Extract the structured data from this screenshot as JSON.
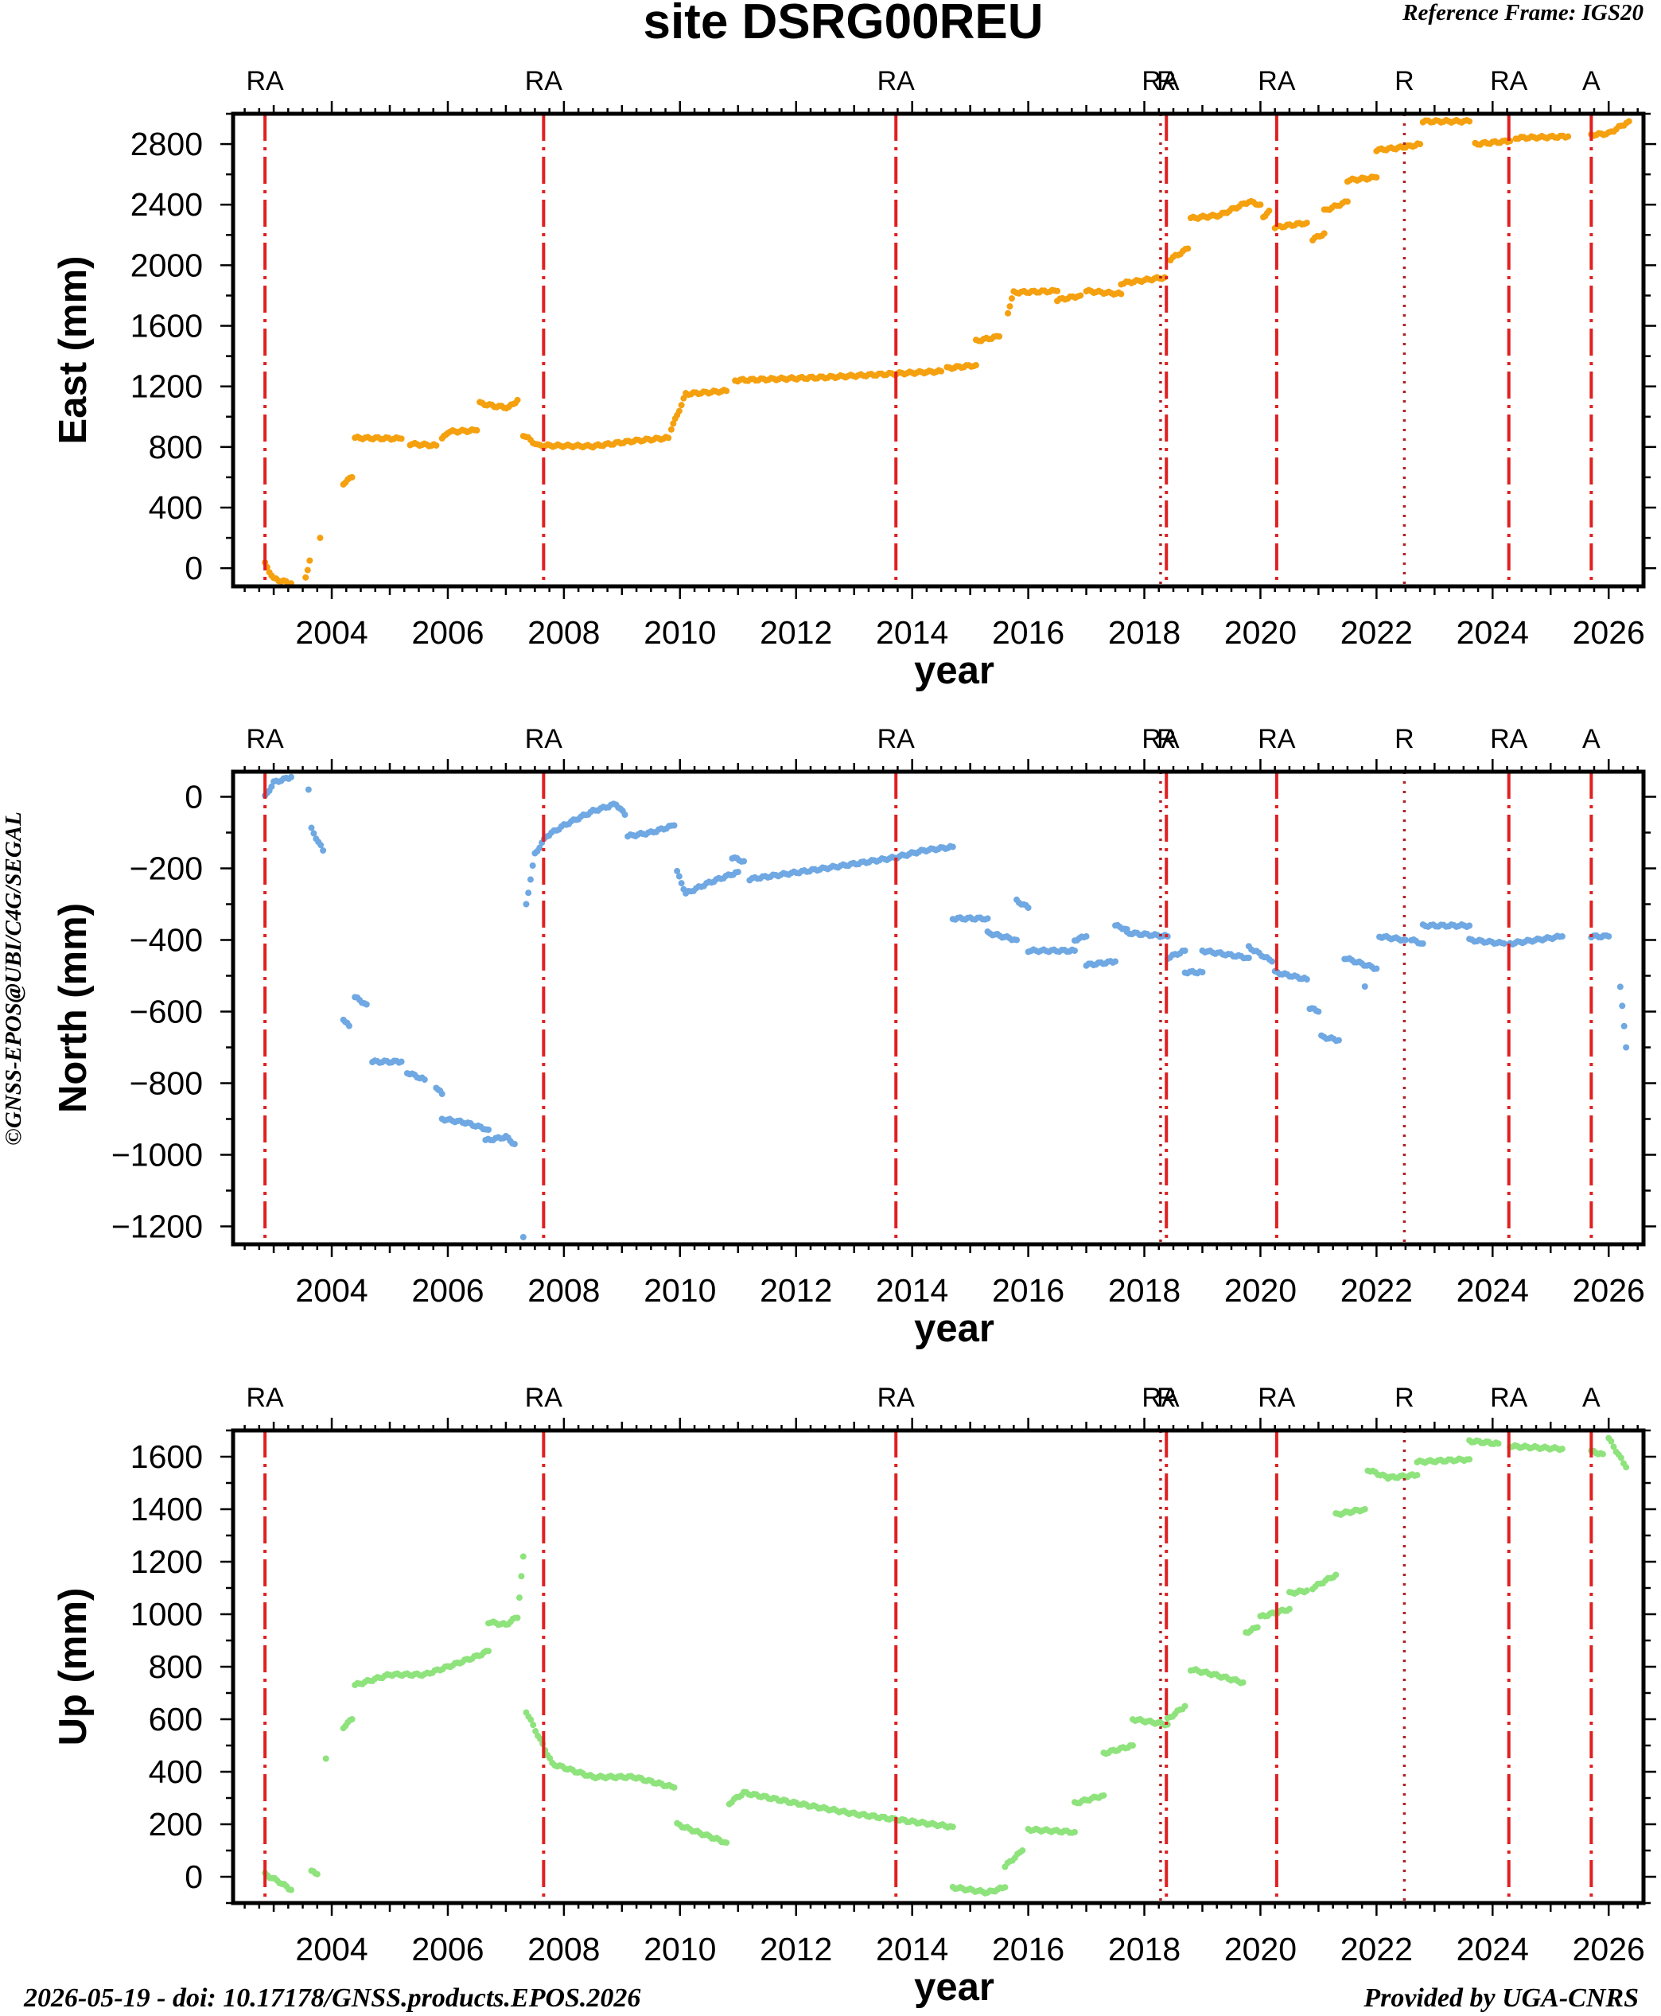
{
  "header": {
    "title": "site DSRG00REU",
    "reference_frame": "Reference Frame: IGS20",
    "credit": "©GNSS-EPOS@UBI/C4G/SEGAL"
  },
  "footer": {
    "date_doi": "2026-05-19 - doi: 10.17178/GNSS.products.EPOS.2026",
    "provider": "Provided by UGA-CNRS"
  },
  "colors": {
    "east": "#f5a00f",
    "north": "#6fa8e2",
    "up": "#8ee37c",
    "event_line": "#e02020",
    "dotted_line": "#b02020"
  },
  "chart_data": [
    {
      "type": "scatter",
      "panel": "east",
      "xlabel": "year",
      "ylabel": "East (mm)",
      "xlim": [
        2002.3,
        2026.6
      ],
      "ylim": [
        -120,
        3000
      ],
      "xticks": [
        2004,
        2006,
        2008,
        2010,
        2012,
        2014,
        2016,
        2018,
        2020,
        2022,
        2024,
        2026
      ],
      "yticks": [
        0,
        400,
        800,
        1200,
        1600,
        2000,
        2400,
        2800
      ],
      "color": "#f5a00f",
      "segments": [
        [
          [
            2002.85,
            30
          ],
          [
            2003.0,
            -70
          ],
          [
            2003.3,
            -100
          ]
        ],
        [
          [
            2003.55,
            -60
          ],
          [
            2003.62,
            50
          ]
        ],
        [
          [
            2003.8,
            200
          ]
        ],
        [
          [
            2004.2,
            560
          ],
          [
            2004.35,
            600
          ]
        ],
        [
          [
            2004.4,
            860
          ],
          [
            2005.2,
            855
          ]
        ],
        [
          [
            2005.35,
            820
          ],
          [
            2005.8,
            810
          ]
        ],
        [
          [
            2005.9,
            850
          ],
          [
            2006.0,
            900
          ],
          [
            2006.5,
            910
          ]
        ],
        [
          [
            2006.55,
            1090
          ],
          [
            2006.8,
            1070
          ],
          [
            2007.05,
            1060
          ],
          [
            2007.2,
            1110
          ]
        ],
        [
          [
            2007.3,
            880
          ],
          [
            2007.55,
            810
          ],
          [
            2008.5,
            805
          ],
          [
            2009.2,
            840
          ],
          [
            2009.8,
            860
          ]
        ],
        [
          [
            2009.85,
            920
          ],
          [
            2009.95,
            1010
          ],
          [
            2010.1,
            1150
          ],
          [
            2010.8,
            1170
          ]
        ],
        [
          [
            2010.95,
            1240
          ],
          [
            2012.5,
            1260
          ],
          [
            2014.0,
            1290
          ],
          [
            2014.5,
            1300
          ]
        ],
        [
          [
            2014.6,
            1320
          ],
          [
            2015.1,
            1340
          ]
        ],
        [
          [
            2015.1,
            1500
          ],
          [
            2015.5,
            1530
          ]
        ],
        [
          [
            2015.65,
            1690
          ],
          [
            2015.75,
            1820
          ],
          [
            2016.5,
            1830
          ]
        ],
        [
          [
            2016.5,
            1770
          ],
          [
            2016.9,
            1800
          ]
        ],
        [
          [
            2017.0,
            1830
          ],
          [
            2017.6,
            1810
          ]
        ],
        [
          [
            2017.6,
            1880
          ],
          [
            2018.35,
            1920
          ]
        ],
        [
          [
            2018.45,
            2040
          ],
          [
            2018.75,
            2110
          ]
        ],
        [
          [
            2018.8,
            2310
          ],
          [
            2019.3,
            2330
          ],
          [
            2019.8,
            2420
          ],
          [
            2020.0,
            2400
          ]
        ],
        [
          [
            2020.05,
            2320
          ],
          [
            2020.15,
            2360
          ]
        ],
        [
          [
            2020.25,
            2250
          ],
          [
            2020.8,
            2280
          ]
        ],
        [
          [
            2020.9,
            2170
          ],
          [
            2021.1,
            2210
          ]
        ],
        [
          [
            2021.1,
            2360
          ],
          [
            2021.5,
            2420
          ]
        ],
        [
          [
            2021.5,
            2560
          ],
          [
            2022.0,
            2580
          ]
        ],
        [
          [
            2022.0,
            2760
          ],
          [
            2022.5,
            2780
          ]
        ],
        [
          [
            2022.5,
            2780
          ],
          [
            2022.75,
            2800
          ]
        ],
        [
          [
            2022.8,
            2950
          ],
          [
            2023.6,
            2950
          ]
        ],
        [
          [
            2023.7,
            2800
          ],
          [
            2024.3,
            2820
          ]
        ],
        [
          [
            2024.4,
            2840
          ],
          [
            2025.3,
            2850
          ]
        ],
        [
          [
            2025.7,
            2860
          ],
          [
            2026.0,
            2870
          ],
          [
            2026.35,
            2950
          ]
        ]
      ]
    },
    {
      "type": "scatter",
      "panel": "north",
      "xlabel": "year",
      "ylabel": "North (mm)",
      "xlim": [
        2002.3,
        2026.6
      ],
      "ylim": [
        -1250,
        70
      ],
      "xticks": [
        2004,
        2006,
        2008,
        2010,
        2012,
        2014,
        2016,
        2018,
        2020,
        2022,
        2024,
        2026
      ],
      "yticks": [
        0,
        -200,
        -400,
        -600,
        -800,
        -1000,
        -1200
      ],
      "color": "#6fa8e2",
      "segments": [
        [
          [
            2002.85,
            0
          ],
          [
            2003.0,
            40
          ],
          [
            2003.3,
            55
          ]
        ],
        [
          [
            2003.6,
            20
          ]
        ],
        [
          [
            2003.65,
            -90
          ],
          [
            2003.85,
            -150
          ]
        ],
        [
          [
            2004.2,
            -620
          ],
          [
            2004.3,
            -640
          ]
        ],
        [
          [
            2004.4,
            -560
          ],
          [
            2004.6,
            -580
          ]
        ],
        [
          [
            2004.7,
            -740
          ],
          [
            2005.2,
            -740
          ]
        ],
        [
          [
            2005.3,
            -770
          ],
          [
            2005.6,
            -790
          ]
        ],
        [
          [
            2005.8,
            -810
          ],
          [
            2005.9,
            -830
          ]
        ],
        [
          [
            2005.9,
            -900
          ],
          [
            2006.3,
            -910
          ],
          [
            2006.7,
            -930
          ]
        ],
        [
          [
            2006.65,
            -960
          ],
          [
            2007.0,
            -950
          ],
          [
            2007.15,
            -970
          ]
        ],
        [
          [
            2007.3,
            -1230
          ]
        ],
        [
          [
            2007.35,
            -300
          ],
          [
            2007.5,
            -160
          ],
          [
            2007.7,
            -110
          ],
          [
            2008.0,
            -80
          ],
          [
            2008.5,
            -40
          ],
          [
            2008.9,
            -20
          ],
          [
            2009.05,
            -50
          ]
        ],
        [
          [
            2009.1,
            -110
          ],
          [
            2009.5,
            -100
          ],
          [
            2009.9,
            -80
          ]
        ],
        [
          [
            2009.95,
            -210
          ],
          [
            2010.1,
            -270
          ],
          [
            2010.5,
            -240
          ],
          [
            2011.0,
            -210
          ]
        ],
        [
          [
            2010.9,
            -170
          ],
          [
            2011.1,
            -180
          ]
        ],
        [
          [
            2011.2,
            -230
          ],
          [
            2012.5,
            -200
          ],
          [
            2013.7,
            -170
          ],
          [
            2014.2,
            -150
          ],
          [
            2014.7,
            -140
          ]
        ],
        [
          [
            2014.7,
            -340
          ],
          [
            2015.3,
            -340
          ]
        ],
        [
          [
            2015.3,
            -380
          ],
          [
            2015.8,
            -400
          ]
        ],
        [
          [
            2015.8,
            -290
          ],
          [
            2016.0,
            -310
          ]
        ],
        [
          [
            2016.0,
            -430
          ],
          [
            2016.8,
            -430
          ]
        ],
        [
          [
            2016.8,
            -400
          ],
          [
            2017.0,
            -390
          ]
        ],
        [
          [
            2017.0,
            -470
          ],
          [
            2017.5,
            -460
          ]
        ],
        [
          [
            2017.5,
            -360
          ],
          [
            2017.7,
            -370
          ]
        ],
        [
          [
            2017.7,
            -380
          ],
          [
            2018.4,
            -390
          ]
        ],
        [
          [
            2018.4,
            -450
          ],
          [
            2018.7,
            -430
          ]
        ],
        [
          [
            2018.7,
            -490
          ],
          [
            2019.0,
            -490
          ]
        ],
        [
          [
            2019.0,
            -430
          ],
          [
            2019.8,
            -450
          ]
        ],
        [
          [
            2019.8,
            -420
          ],
          [
            2020.2,
            -460
          ]
        ],
        [
          [
            2020.25,
            -490
          ],
          [
            2020.8,
            -510
          ]
        ],
        [
          [
            2020.85,
            -590
          ],
          [
            2021.0,
            -600
          ]
        ],
        [
          [
            2021.05,
            -670
          ],
          [
            2021.35,
            -680
          ]
        ],
        [
          [
            2021.45,
            -450
          ],
          [
            2022.0,
            -480
          ]
        ],
        [
          [
            2021.8,
            -530
          ]
        ],
        [
          [
            2022.05,
            -390
          ],
          [
            2022.5,
            -400
          ]
        ],
        [
          [
            2022.6,
            -400
          ],
          [
            2022.8,
            -410
          ]
        ],
        [
          [
            2022.8,
            -360
          ],
          [
            2023.6,
            -360
          ]
        ],
        [
          [
            2023.6,
            -400
          ],
          [
            2024.2,
            -410
          ]
        ],
        [
          [
            2024.3,
            -410
          ],
          [
            2025.2,
            -390
          ]
        ],
        [
          [
            2025.7,
            -390
          ],
          [
            2026.0,
            -390
          ]
        ],
        [
          [
            2026.2,
            -530
          ],
          [
            2026.3,
            -700
          ]
        ]
      ]
    },
    {
      "type": "scatter",
      "panel": "up",
      "xlabel": "year",
      "ylabel": "Up (mm)",
      "xlim": [
        2002.3,
        2026.6
      ],
      "ylim": [
        -100,
        1700
      ],
      "xticks": [
        2004,
        2006,
        2008,
        2010,
        2012,
        2014,
        2016,
        2018,
        2020,
        2022,
        2024,
        2026
      ],
      "yticks": [
        0,
        200,
        400,
        600,
        800,
        1000,
        1200,
        1400,
        1600
      ],
      "color": "#8ee37c",
      "segments": [
        [
          [
            2002.85,
            10
          ],
          [
            2003.1,
            -20
          ],
          [
            2003.3,
            -50
          ]
        ],
        [
          [
            2003.65,
            20
          ],
          [
            2003.75,
            10
          ]
        ],
        [
          [
            2003.9,
            450
          ]
        ],
        [
          [
            2004.2,
            570
          ],
          [
            2004.35,
            600
          ]
        ],
        [
          [
            2004.4,
            730
          ],
          [
            2005.0,
            770
          ],
          [
            2005.6,
            770
          ],
          [
            2006.0,
            800
          ],
          [
            2006.5,
            840
          ],
          [
            2006.7,
            860
          ]
        ],
        [
          [
            2006.7,
            970
          ],
          [
            2007.0,
            960
          ],
          [
            2007.2,
            990
          ],
          [
            2007.3,
            1220
          ]
        ],
        [
          [
            2007.35,
            630
          ],
          [
            2007.55,
            540
          ],
          [
            2007.8,
            430
          ],
          [
            2008.5,
            380
          ],
          [
            2009.2,
            380
          ],
          [
            2009.9,
            340
          ]
        ],
        [
          [
            2009.95,
            200
          ],
          [
            2010.3,
            170
          ],
          [
            2010.8,
            130
          ]
        ],
        [
          [
            2010.85,
            280
          ],
          [
            2011.1,
            320
          ],
          [
            2012.0,
            280
          ],
          [
            2013.0,
            240
          ],
          [
            2014.0,
            210
          ],
          [
            2014.7,
            190
          ]
        ],
        [
          [
            2014.7,
            -40
          ],
          [
            2015.3,
            -60
          ],
          [
            2015.6,
            -40
          ]
        ],
        [
          [
            2015.6,
            40
          ],
          [
            2015.9,
            100
          ]
        ],
        [
          [
            2016.0,
            180
          ],
          [
            2016.8,
            170
          ]
        ],
        [
          [
            2016.8,
            280
          ],
          [
            2017.3,
            310
          ]
        ],
        [
          [
            2017.3,
            470
          ],
          [
            2017.8,
            500
          ]
        ],
        [
          [
            2017.8,
            600
          ],
          [
            2018.4,
            580
          ]
        ],
        [
          [
            2018.4,
            600
          ],
          [
            2018.7,
            650
          ]
        ],
        [
          [
            2018.8,
            790
          ],
          [
            2019.2,
            770
          ],
          [
            2019.7,
            740
          ]
        ],
        [
          [
            2019.75,
            930
          ],
          [
            2019.95,
            950
          ]
        ],
        [
          [
            2020.0,
            990
          ],
          [
            2020.5,
            1020
          ]
        ],
        [
          [
            2020.5,
            1080
          ],
          [
            2020.8,
            1090
          ]
        ],
        [
          [
            2020.9,
            1100
          ],
          [
            2021.3,
            1150
          ]
        ],
        [
          [
            2021.3,
            1380
          ],
          [
            2021.8,
            1400
          ]
        ],
        [
          [
            2021.85,
            1550
          ],
          [
            2022.2,
            1520
          ]
        ],
        [
          [
            2022.2,
            1520
          ],
          [
            2022.7,
            1530
          ]
        ],
        [
          [
            2022.7,
            1580
          ],
          [
            2023.6,
            1590
          ]
        ],
        [
          [
            2023.6,
            1660
          ],
          [
            2024.1,
            1650
          ]
        ],
        [
          [
            2024.3,
            1640
          ],
          [
            2025.2,
            1630
          ]
        ],
        [
          [
            2025.7,
            1620
          ],
          [
            2025.9,
            1610
          ]
        ],
        [
          [
            2026.0,
            1670
          ],
          [
            2026.3,
            1560
          ]
        ]
      ]
    }
  ],
  "events": [
    {
      "year": 2002.85,
      "label": "RA",
      "style": "dashdot"
    },
    {
      "year": 2007.65,
      "label": "RA",
      "style": "dashdot"
    },
    {
      "year": 2013.72,
      "label": "RA",
      "style": "dashdot"
    },
    {
      "year": 2018.28,
      "label": "RA",
      "style": "dotted"
    },
    {
      "year": 2018.38,
      "label": "R",
      "style": "dashdot"
    },
    {
      "year": 2020.28,
      "label": "RA",
      "style": "dashdot"
    },
    {
      "year": 2022.48,
      "label": "R",
      "style": "dotted"
    },
    {
      "year": 2024.28,
      "label": "RA",
      "style": "dashdot"
    },
    {
      "year": 2025.7,
      "label": "A",
      "style": "dashdot"
    }
  ]
}
